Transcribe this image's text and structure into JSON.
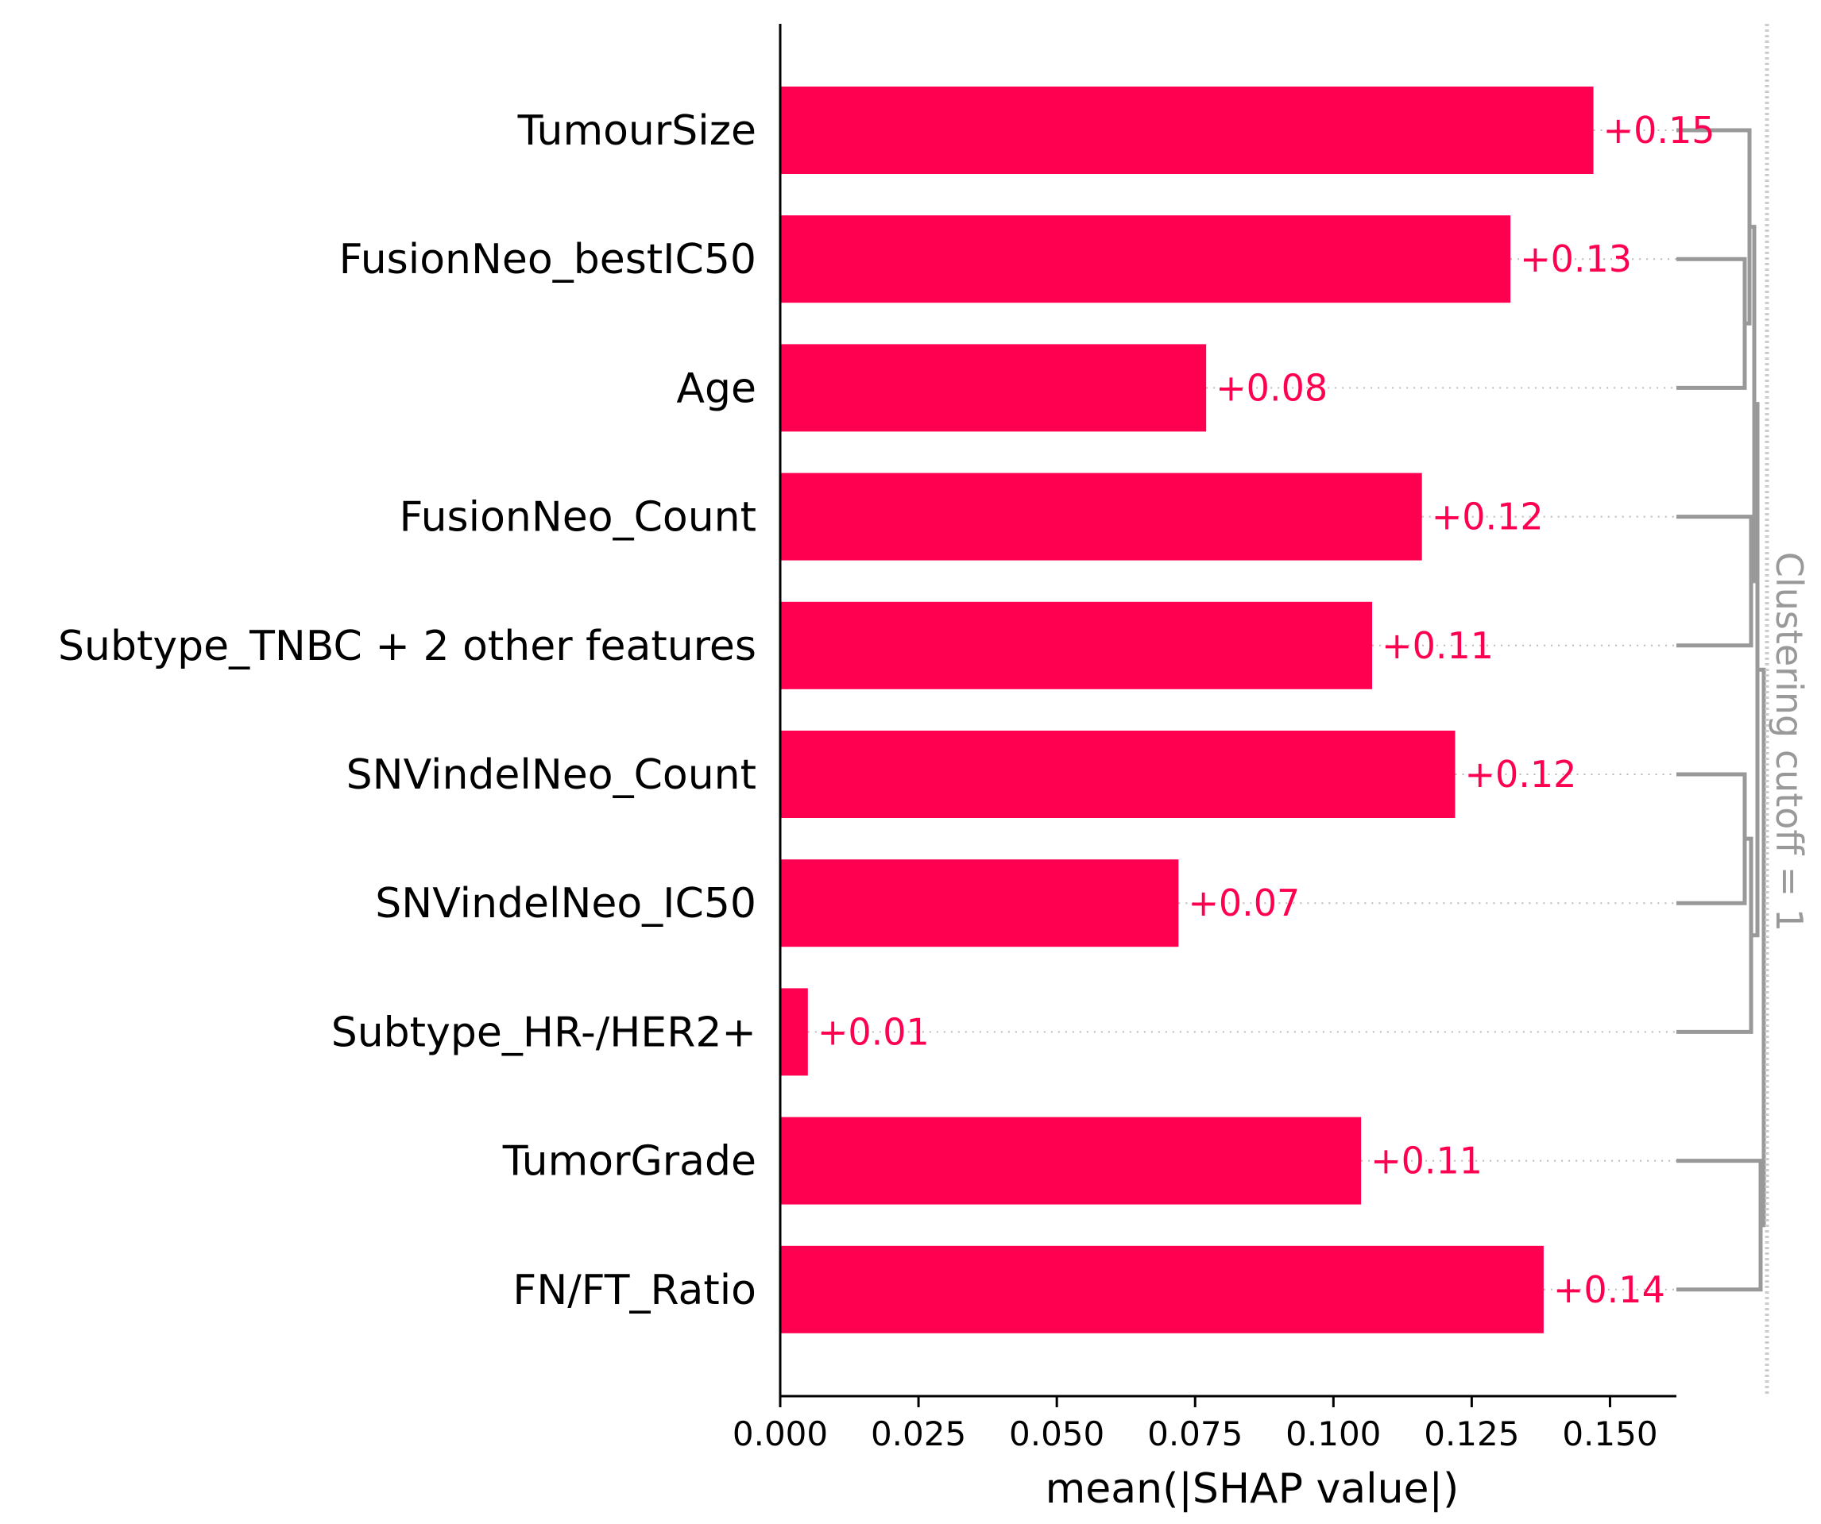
{
  "colors": {
    "bar": "#ff0051",
    "value_label": "#ff0051",
    "dendrogram": "#999999",
    "cutoff_line": "#cccccc",
    "gridline": "#bbbbbb",
    "axis": "#000000"
  },
  "chart_data": {
    "type": "bar",
    "orientation": "horizontal",
    "title": "",
    "xlabel": "mean(|SHAP value|)",
    "ylabel": "",
    "xlim": [
      0,
      0.162
    ],
    "xticks": [
      "0.000",
      "0.025",
      "0.050",
      "0.075",
      "0.100",
      "0.125",
      "0.150"
    ],
    "categories": [
      "TumourSize",
      "FusionNeo_bestIC50",
      "Age",
      "FusionNeo_Count",
      "Subtype_TNBC + 2 other features",
      "SNVindelNeo_Count",
      "SNVindelNeo_IC50",
      "Subtype_HR-/HER2+",
      "TumorGrade",
      "FN/FT_Ratio"
    ],
    "values": [
      0.147,
      0.132,
      0.077,
      0.116,
      0.107,
      0.122,
      0.072,
      0.005,
      0.105,
      0.138
    ],
    "value_labels": [
      "+0.15",
      "+0.13",
      "+0.08",
      "+0.12",
      "+0.11",
      "+0.12",
      "+0.07",
      "+0.01",
      "+0.11",
      "+0.14"
    ],
    "clustering_cutoff_label": "Clustering cutoff = 1"
  }
}
